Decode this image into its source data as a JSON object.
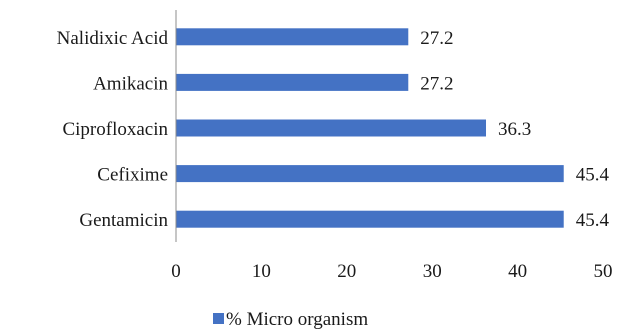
{
  "chart_data": {
    "type": "bar",
    "orientation": "horizontal",
    "categories": [
      "Nalidixic Acid",
      "Amikacin",
      "Ciprofloxacin",
      "Cefixime",
      "Gentamicin"
    ],
    "series": [
      {
        "name": "% Micro organism",
        "values": [
          27.2,
          27.2,
          36.3,
          45.4,
          45.4
        ],
        "color": "#4472C4"
      }
    ],
    "data_labels": [
      "27.2",
      "27.2",
      "36.3",
      "45.4",
      "45.4"
    ],
    "xlim": [
      0,
      50
    ],
    "x_ticks": [
      0,
      10,
      20,
      30,
      40,
      50
    ],
    "x_tick_labels": [
      "0",
      "10",
      "20",
      "30",
      "40",
      "50"
    ],
    "grid": false,
    "legend_position": "bottom",
    "title": "",
    "xlabel": "",
    "ylabel": ""
  }
}
